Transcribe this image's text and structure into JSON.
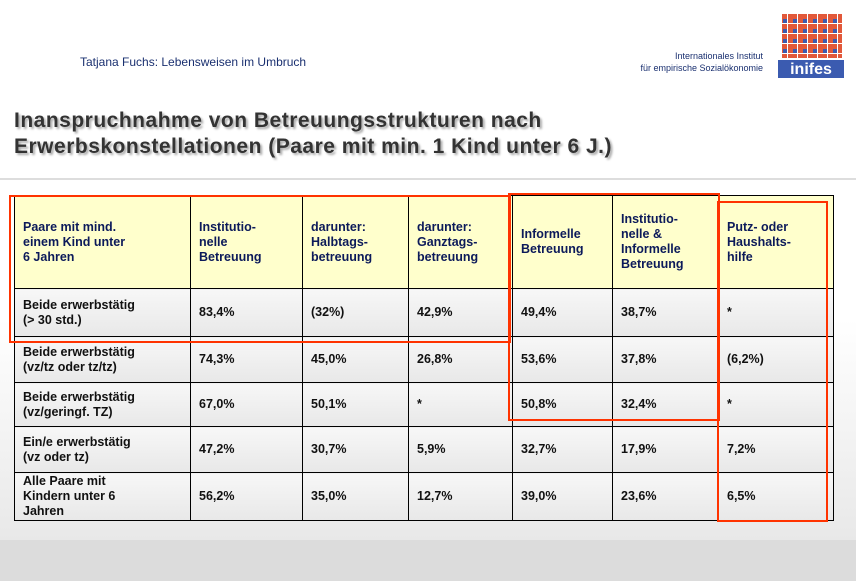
{
  "header": {
    "author": "Tatjana Fuchs: Lebensweisen im Umbruch",
    "institute_line1": "Internationales Institut",
    "institute_line2": "für empirische Sozialökonomie",
    "logo_text": "inifes"
  },
  "title": {
    "line1": "Inanspruchnahme von Betreuungsstrukturen nach",
    "line2": "Erwerbskonstellationen (Paare mit min. 1 Kind unter 6 J.)"
  },
  "table": {
    "header": [
      "Paare mit mind.\neinem Kind unter\n6 Jahren",
      "Institutio-\nnelle\nBetreuung",
      "darunter:\nHalbtags-\nbetreuung",
      "darunter:\nGanztags-\nbetreuung",
      "Informelle\nBetreuung",
      "Institutio-\nnelle &\nInformelle\nBetreuung",
      "Putz- oder\nHaushalts-\nhilfe"
    ],
    "rows": [
      [
        "Beide erwerbstätig\n(> 30 std.)",
        "83,4%",
        "(32%)",
        "42,9%",
        "49,4%",
        "38,7%",
        "*"
      ],
      [
        "Beide erwerbstätig\n(vz/tz oder tz/tz)",
        "74,3%",
        "45,0%",
        "26,8%",
        "53,6%",
        "37,8%",
        "(6,2%)"
      ],
      [
        "Beide erwerbstätig\n(vz/geringf. TZ)",
        "67,0%",
        "50,1%",
        "*",
        "50,8%",
        "32,4%",
        "*"
      ],
      [
        "Ein/e erwerbstätig\n(vz oder tz)",
        "47,2%",
        "30,7%",
        "5,9%",
        "32,7%",
        "17,9%",
        "7,2%"
      ],
      [
        "Alle Paare mit\nKindern unter 6\nJahren",
        "56,2%",
        "35,0%",
        "12,7%",
        "39,0%",
        "23,6%",
        "6,5%"
      ]
    ]
  }
}
